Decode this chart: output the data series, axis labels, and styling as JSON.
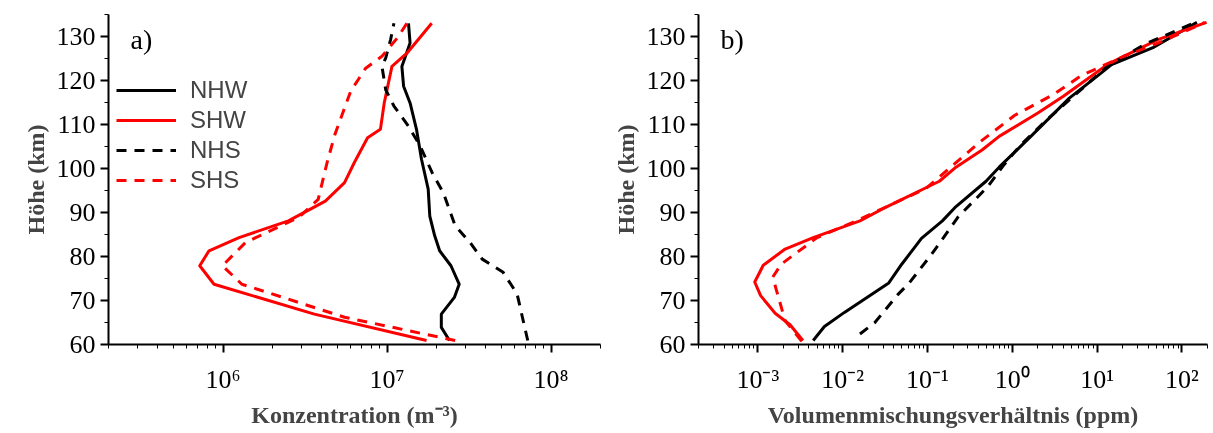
{
  "chart_data": [
    {
      "type": "line",
      "xlabel": "Konzentration (m⁻³)",
      "ylabel": "Höhe (km)",
      "annotations": [
        "a)"
      ],
      "log": "x",
      "grid": false,
      "legend": "top left",
      "xlim": [
        200000,
        200000000
      ],
      "ylim": [
        60,
        135
      ],
      "xticks": [
        {
          "value": 1000000,
          "label": "10⁶"
        },
        {
          "value": 10000000,
          "label": "10⁷"
        },
        {
          "value": 100000000,
          "label": "10⁸"
        }
      ],
      "yticks": [
        60,
        70,
        80,
        90,
        100,
        110,
        120,
        130
      ],
      "series": [
        {
          "name": "NHW",
          "color": "#000000",
          "line_style": "solid",
          "x": [
            24000000,
            21400000,
            21400000,
            25700000,
            27500000,
            24500000,
            20900000,
            19500000,
            18200000,
            17800000,
            16200000,
            15100000,
            13800000,
            12600000,
            12300000,
            13800000,
            13500000
          ],
          "values": [
            60.9,
            63.9,
            66.9,
            70.7,
            73.7,
            77.9,
            81.3,
            84.7,
            89.2,
            95.3,
            102.1,
            108.9,
            114.9,
            118.7,
            123.2,
            128.5,
            133.0
          ]
        },
        {
          "name": "SHW",
          "color": "#ff0000",
          "line_style": "solid",
          "x": [
            17400000,
            3600000,
            880000,
            720000,
            820000,
            1250000,
            2500000,
            4200000,
            5500000,
            6300000,
            7600000,
            9100000,
            9600000,
            10700000,
            13200000,
            18700000
          ],
          "values": [
            60.9,
            66.9,
            73.7,
            77.9,
            81.3,
            84.3,
            88.1,
            92.6,
            96.8,
            101.3,
            107.0,
            108.9,
            114.9,
            123.2,
            126.2,
            133.0
          ]
        },
        {
          "name": "NHS",
          "color": "#000000",
          "line_style": "dashed",
          "x": [
            72000000,
            62000000,
            51000000,
            38000000,
            32000000,
            26000000,
            22000000,
            19000000,
            15900000,
            13500000,
            11000000,
            9800000,
            9300000,
            9800000,
            10500000,
            11000000
          ],
          "values": [
            60.9,
            71.5,
            76.4,
            79.4,
            83.2,
            87.0,
            94.5,
            98.7,
            105.1,
            109.6,
            114.2,
            117.9,
            123.2,
            125.1,
            129.3,
            133.0
          ]
        },
        {
          "name": "SHS",
          "color": "#ff0000",
          "line_style": "dashed",
          "x": [
            26000000,
            5500000,
            1300000,
            990000,
            1370000,
            2900000,
            3800000,
            4300000,
            4800000,
            6000000,
            7400000,
            9300000,
            11500000,
            13200000
          ],
          "values": [
            60.9,
            66.2,
            73.7,
            77.9,
            83.2,
            88.9,
            93.0,
            101.3,
            107.7,
            117.6,
            122.8,
            125.5,
            129.6,
            133.0
          ]
        }
      ]
    },
    {
      "type": "line",
      "xlabel": "Volumenmischungsverhältnis (ppm)",
      "ylabel": "Höhe (km)",
      "annotations": [
        "b)"
      ],
      "log": "x",
      "grid": false,
      "xlim": [
        0.0002,
        200
      ],
      "ylim": [
        60,
        135
      ],
      "xticks": [
        {
          "value": 0.001,
          "label": "10⁻³"
        },
        {
          "value": 0.01,
          "label": "10⁻²"
        },
        {
          "value": 0.1,
          "label": "10⁻¹"
        },
        {
          "value": 1,
          "label": "10⁰"
        },
        {
          "value": 10,
          "label": "10¹"
        },
        {
          "value": 100,
          "label": "10²"
        }
      ],
      "yticks": [
        60,
        70,
        80,
        90,
        100,
        110,
        120,
        130
      ],
      "series": [
        {
          "color": "#000000",
          "line_style": "solid",
          "x": [
            0.0045,
            0.0061,
            0.0105,
            0.035,
            0.05,
            0.085,
            0.15,
            0.21,
            0.49,
            0.7,
            1.6,
            4.7,
            10.2,
            14.8,
            47,
            150
          ],
          "values": [
            60.9,
            64.1,
            67.3,
            74.0,
            78.3,
            84.1,
            88.1,
            91.1,
            97.1,
            100.3,
            107.0,
            116.0,
            121.1,
            123.6,
            127.6,
            133.2
          ]
        },
        {
          "color": "#ff0000",
          "line_style": "solid",
          "x": [
            0.0034,
            0.0024,
            0.0016,
            0.00108,
            0.00092,
            0.00116,
            0.0021,
            0.0045,
            0.016,
            0.033,
            0.138,
            0.21,
            0.44,
            0.7,
            2.0,
            4.0,
            13.4,
            52,
            195
          ],
          "values": [
            60.9,
            64.5,
            67.1,
            71.1,
            74.2,
            78.0,
            81.7,
            84.3,
            88.1,
            91.3,
            97.1,
            100.1,
            104.2,
            107.3,
            112.6,
            116.4,
            123.7,
            129.3,
            133.2
          ]
        },
        {
          "color": "#000000",
          "line_style": "dashed",
          "x": [
            0.016,
            0.024,
            0.045,
            0.061,
            0.111,
            0.23,
            0.51,
            0.78,
            1.25,
            2.5,
            4.7,
            13.4,
            38,
            144
          ],
          "values": [
            62.4,
            65.0,
            71.4,
            74.0,
            80.4,
            89.0,
            95.8,
            100.6,
            105.3,
            110.9,
            115.6,
            123.3,
            128.4,
            133.2
          ]
        },
        {
          "color": "#ff0000",
          "line_style": "dashed",
          "x": [
            0.0033,
            0.0021,
            0.0015,
            0.0019,
            0.005,
            0.013,
            0.095,
            0.42,
            1.07,
            3.1,
            6.5,
            20,
            59,
            186
          ],
          "values": [
            60.7,
            65.4,
            75.3,
            78.3,
            84.3,
            87.7,
            95.4,
            106.1,
            112.1,
            116.9,
            121.1,
            125.4,
            128.9,
            133.2
          ]
        }
      ]
    }
  ]
}
